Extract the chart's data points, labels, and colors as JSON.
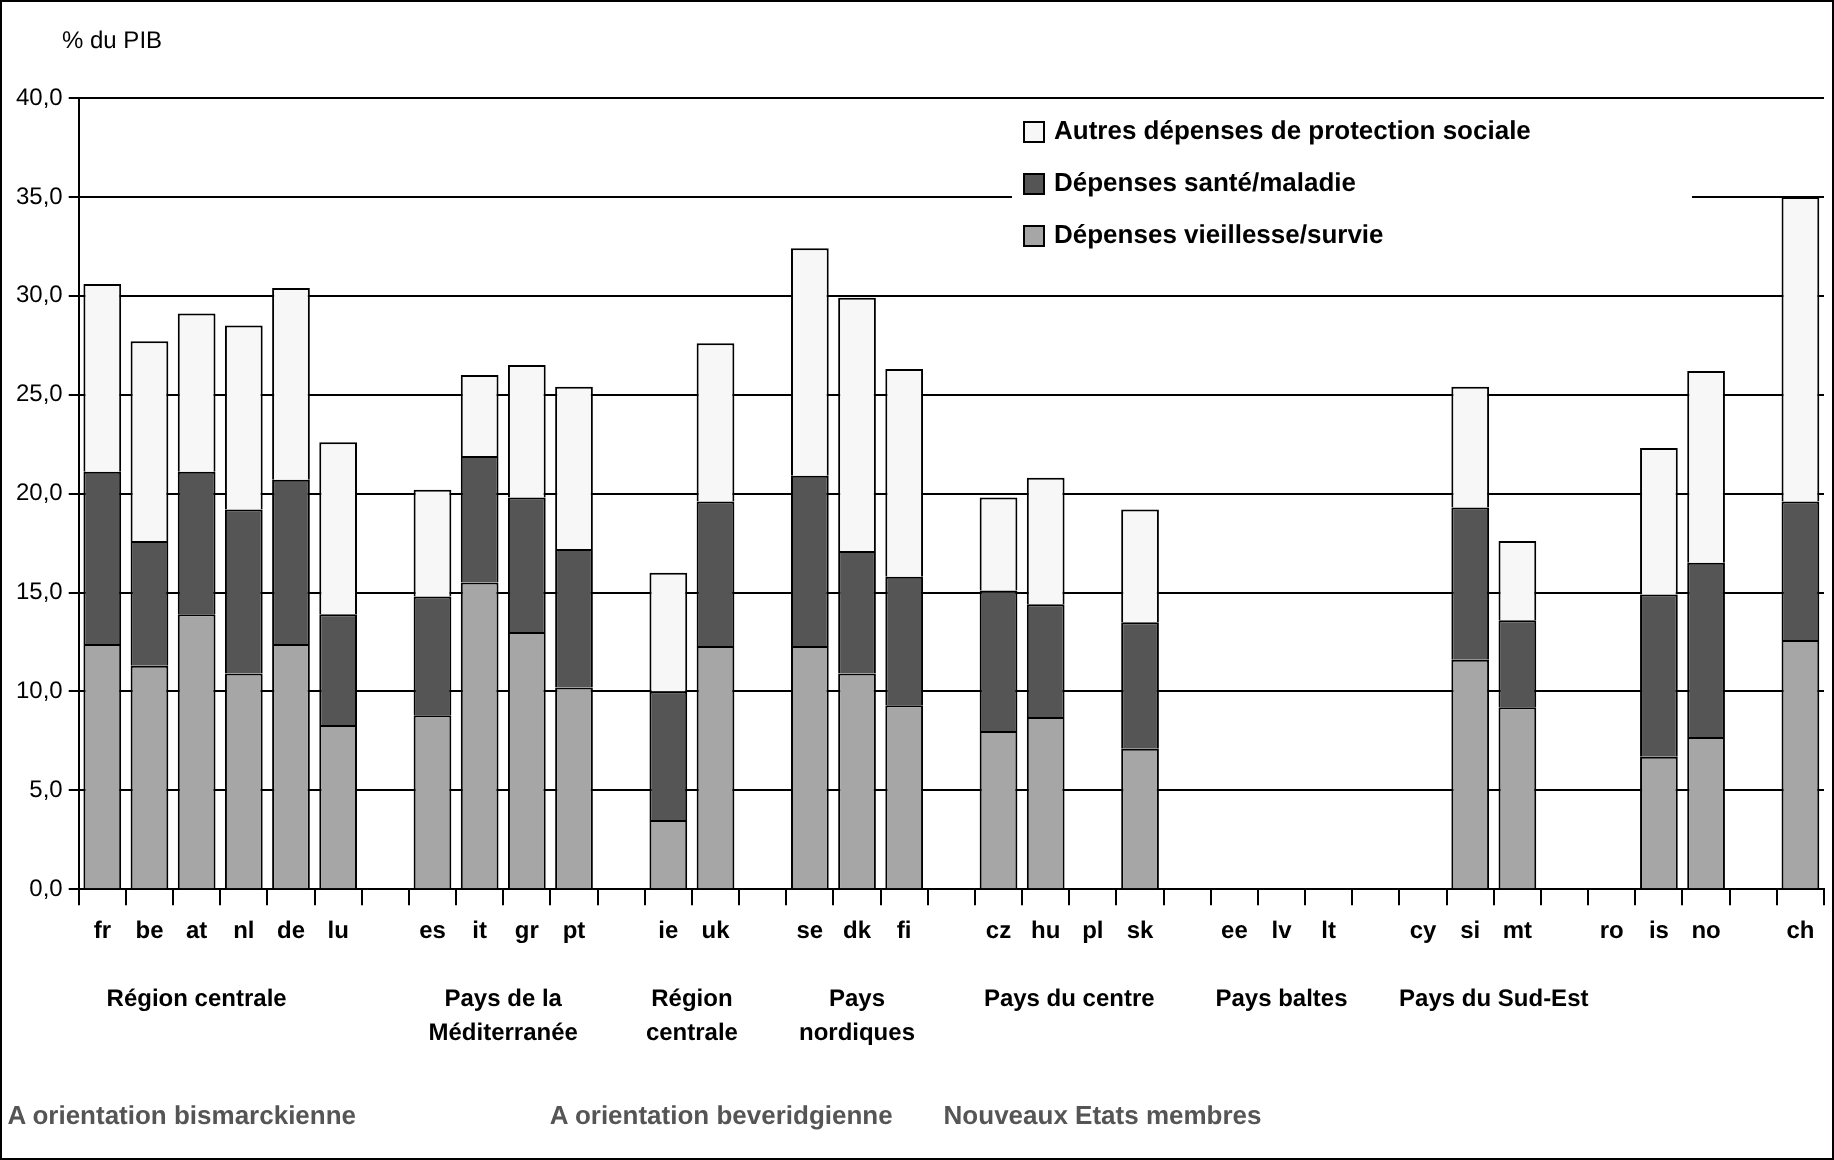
{
  "chart_data": {
    "type": "bar",
    "stacked": true,
    "ylabel": "% du PIB",
    "categories": [
      "fr",
      "be",
      "at",
      "nl",
      "de",
      "lu",
      null,
      "es",
      "it",
      "gr",
      "pt",
      null,
      "ie",
      "uk",
      null,
      "se",
      "dk",
      "fi",
      null,
      "cz",
      "hu",
      "pl",
      "sk",
      null,
      "ee",
      "lv",
      "lt",
      null,
      "cy",
      "si",
      "mt",
      null,
      "ro",
      "is",
      "no",
      null,
      "ch"
    ],
    "series": [
      {
        "name": "Dépenses vieillesse/survie",
        "color": "#a6a6a6",
        "values": [
          12.4,
          11.3,
          13.9,
          10.9,
          12.4,
          8.3,
          null,
          8.8,
          15.5,
          13.0,
          10.2,
          null,
          3.5,
          12.3,
          null,
          12.3,
          10.9,
          9.3,
          null,
          8.0,
          8.7,
          null,
          7.1,
          null,
          null,
          null,
          null,
          null,
          null,
          11.6,
          9.2,
          null,
          null,
          6.7,
          7.7,
          null,
          12.6
        ]
      },
      {
        "name": "Dépenses santé/maladie",
        "color": "#555555",
        "values": [
          8.7,
          6.3,
          7.2,
          8.3,
          8.3,
          5.6,
          null,
          6.0,
          6.4,
          6.8,
          7.0,
          null,
          6.5,
          7.3,
          null,
          8.6,
          6.2,
          6.5,
          null,
          7.1,
          5.7,
          null,
          6.4,
          null,
          null,
          null,
          null,
          null,
          null,
          7.7,
          4.4,
          null,
          null,
          8.2,
          8.8,
          null,
          7.0
        ]
      },
      {
        "name": "Autres dépenses de protection sociale",
        "color": "#f7f7f7",
        "values": [
          9.5,
          10.1,
          8.0,
          9.3,
          9.7,
          8.7,
          null,
          5.4,
          4.1,
          6.7,
          8.2,
          null,
          6.0,
          8.0,
          null,
          11.5,
          12.8,
          10.5,
          null,
          4.7,
          6.4,
          null,
          5.7,
          null,
          null,
          null,
          null,
          null,
          null,
          6.1,
          4.0,
          null,
          null,
          7.4,
          9.7,
          null,
          15.4
        ]
      }
    ],
    "ylim": [
      0,
      40
    ],
    "yticks": [
      {
        "value": 0,
        "label": "0,0"
      },
      {
        "value": 5,
        "label": "5,0"
      },
      {
        "value": 10,
        "label": "10,0"
      },
      {
        "value": 15,
        "label": "15,0"
      },
      {
        "value": 20,
        "label": "20,0"
      },
      {
        "value": 25,
        "label": "25,0"
      },
      {
        "value": 30,
        "label": "30,0"
      },
      {
        "value": 35,
        "label": "35,0"
      },
      {
        "value": 40,
        "label": "40,0"
      }
    ],
    "grid": "y",
    "legend": "top right",
    "annotations": [
      "Région centrale",
      "Pays de la Méditerranée",
      "Région centrale",
      "Pays nordiques",
      "Pays du centre",
      "Pays baltes",
      "Pays du Sud-Est",
      "A orientation bismarckienne",
      "A orientation beveridgienne",
      "Nouveaux Etats membres"
    ]
  }
}
